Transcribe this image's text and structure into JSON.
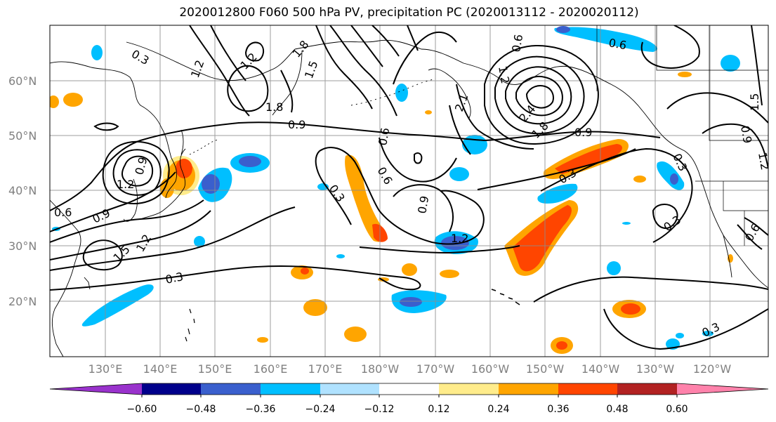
{
  "title": "2020012800 F060 500 hPa PV, precipitation PC (2020013112 - 2020020112)",
  "map": {
    "lat_labels": [
      "60°N",
      "50°N",
      "40°N",
      "30°N",
      "20°N"
    ],
    "lon_labels": [
      "130°E",
      "140°E",
      "150°E",
      "160°E",
      "170°E",
      "180°W",
      "170°W",
      "160°W",
      "150°W",
      "140°W",
      "130°W",
      "120°W"
    ],
    "contour_labels": [
      {
        "text": "0.3"
      },
      {
        "text": "1.2"
      },
      {
        "text": "1.2"
      },
      {
        "text": "1.8"
      },
      {
        "text": "1.5"
      },
      {
        "text": "1.8"
      },
      {
        "text": "0.9"
      },
      {
        "text": "0.6"
      },
      {
        "text": "0.6"
      },
      {
        "text": "0.6"
      },
      {
        "text": "1.2"
      },
      {
        "text": "2.1"
      },
      {
        "text": "2.4"
      },
      {
        "text": "1.8"
      },
      {
        "text": "0.9"
      },
      {
        "text": "0.3"
      },
      {
        "text": "0.3"
      },
      {
        "text": "0.9"
      },
      {
        "text": "1.2"
      },
      {
        "text": "1.5"
      },
      {
        "text": "0.9"
      },
      {
        "text": "1.2"
      },
      {
        "text": "0.6"
      },
      {
        "text": "0.9"
      },
      {
        "text": "1.2"
      },
      {
        "text": "1.5"
      },
      {
        "text": "0.3"
      },
      {
        "text": "0.3"
      },
      {
        "text": "0.9"
      },
      {
        "text": "0.6"
      },
      {
        "text": "0.3"
      },
      {
        "text": "1.2"
      },
      {
        "text": "0.3"
      },
      {
        "text": "0.6"
      }
    ]
  },
  "colorbar": {
    "colors": [
      "#9932cc",
      "#00008b",
      "#3a5fcd",
      "#00bfff",
      "#b0e2ff",
      "#ffffff",
      "#ffec8b",
      "#ffa500",
      "#ff4500",
      "#b22222",
      "#ff82ab"
    ],
    "ticks": [
      "−0.60",
      "−0.48",
      "−0.36",
      "−0.24",
      "−0.12",
      "0.12",
      "0.24",
      "0.36",
      "0.48",
      "0.60"
    ]
  }
}
